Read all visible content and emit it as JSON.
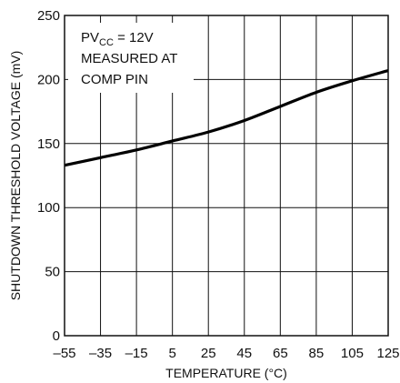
{
  "chart_data": {
    "type": "line",
    "title": "",
    "xlabel": "TEMPERATURE (°C)",
    "ylabel": "SHUTDOWN THRESHOLD VOLTAGE (mV)",
    "xlim": [
      -55,
      125
    ],
    "ylim": [
      0,
      250
    ],
    "x_ticks": [
      -55,
      -35,
      -15,
      5,
      25,
      45,
      65,
      85,
      105,
      125
    ],
    "x_tick_labels": [
      "–55",
      "–35",
      "–15",
      "5",
      "25",
      "45",
      "65",
      "85",
      "105",
      "125"
    ],
    "y_ticks": [
      0,
      50,
      100,
      150,
      200,
      250
    ],
    "y_tick_labels": [
      "0",
      "50",
      "100",
      "150",
      "200",
      "250"
    ],
    "grid": true,
    "series": [
      {
        "name": "",
        "x": [
          -55,
          -35,
          -15,
          5,
          25,
          45,
          65,
          85,
          105,
          125
        ],
        "y": [
          133,
          139,
          145,
          152,
          159,
          168,
          179,
          190,
          199,
          207
        ]
      }
    ],
    "annotations": {
      "line1_prefix": "PV",
      "line1_sub": "CC",
      "line1_suffix": " = 12V",
      "line2": "MEASURED AT",
      "line3": "COMP PIN"
    }
  }
}
